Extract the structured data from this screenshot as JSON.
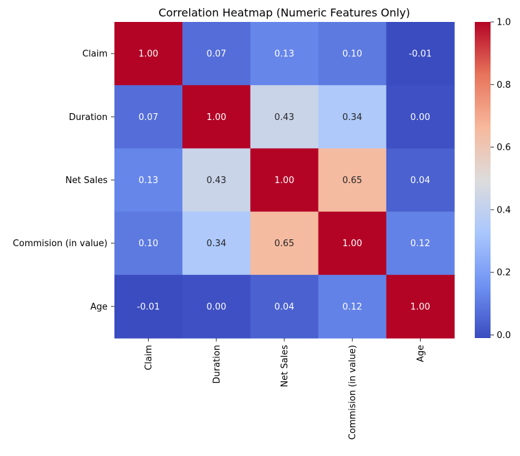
{
  "chart_data": {
    "type": "heatmap",
    "title": "Correlation Heatmap (Numeric Features Only)",
    "xlabel": "",
    "ylabel": "",
    "row_labels": [
      "Claim",
      "Duration",
      "Net Sales",
      "Commision (in value)",
      "Age"
    ],
    "col_labels": [
      "Claim",
      "Duration",
      "Net Sales",
      "Commision (in value)",
      "Age"
    ],
    "values": [
      [
        1.0,
        0.07,
        0.13,
        0.1,
        -0.01
      ],
      [
        0.07,
        1.0,
        0.43,
        0.34,
        0.0
      ],
      [
        0.13,
        0.43,
        1.0,
        0.65,
        0.04
      ],
      [
        0.1,
        0.34,
        0.65,
        1.0,
        0.12
      ],
      [
        -0.01,
        0.0,
        0.04,
        0.12,
        1.0
      ]
    ],
    "annotation_format": "0.00",
    "colormap": "coolwarm",
    "colormap_stops": [
      "#3b4cc0",
      "#6f92f3",
      "#aac7fd",
      "#dddcdc",
      "#f7b89c",
      "#e7745b",
      "#b40426"
    ],
    "vmin": -0.01,
    "vmax": 1.0,
    "colorbar_ticks": [
      0.0,
      0.2,
      0.4,
      0.6,
      0.8,
      1.0
    ],
    "colorbar_tick_labels": [
      "0.0",
      "0.2",
      "0.4",
      "0.6",
      "0.8",
      "1.0"
    ],
    "grid": false,
    "legend": "colorbar-right"
  }
}
